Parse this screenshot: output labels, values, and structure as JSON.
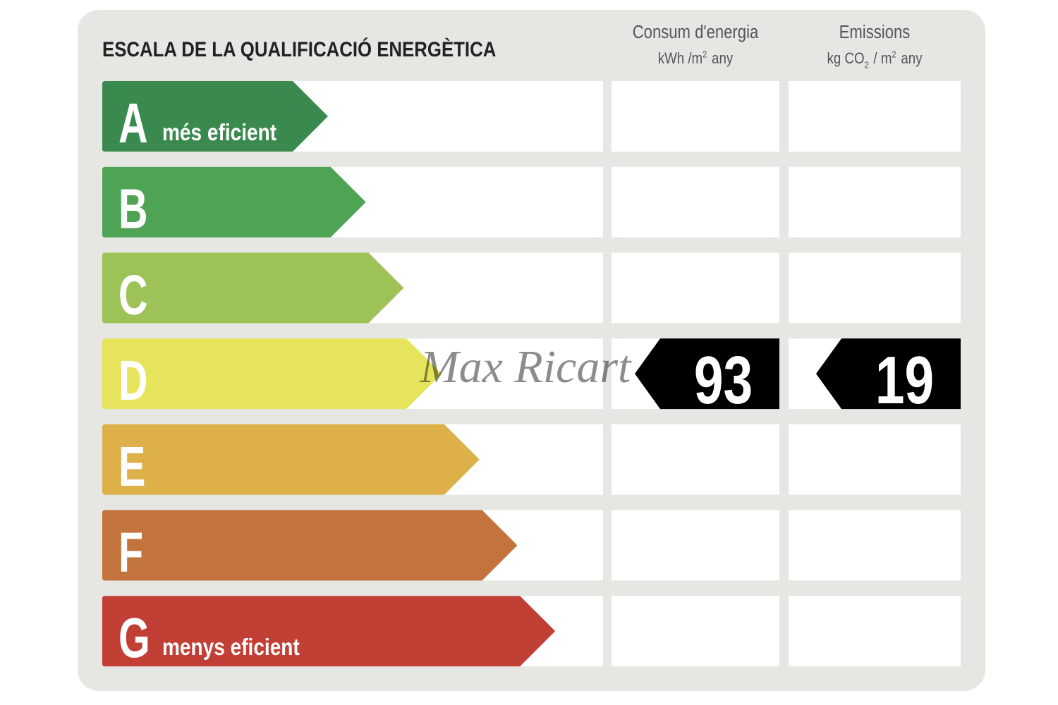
{
  "header": {
    "title": "ESCALA DE LA QUALIFICACIÓ ENERGÈTICA",
    "columns": [
      {
        "name": "Consum d'energia",
        "unit_parts": [
          {
            "text": "kWh /m"
          },
          {
            "text": "2",
            "style": "sup"
          },
          {
            "text": "any"
          }
        ]
      },
      {
        "name": "Emissions",
        "unit_parts": [
          {
            "text": "kg CO"
          },
          {
            "text": "2",
            "style": "sub"
          },
          {
            "text": "/ m"
          },
          {
            "text": "2",
            "style": "sup"
          },
          {
            "text": "any"
          }
        ]
      }
    ]
  },
  "scale": {
    "rows": [
      {
        "letter": "A",
        "label": "més eficient",
        "color": "#3a8a4f"
      },
      {
        "letter": "B",
        "color": "#4fa354"
      },
      {
        "letter": "C",
        "color": "#9cc258"
      },
      {
        "letter": "D",
        "color": "#e6e35c"
      },
      {
        "letter": "E",
        "color": "#ddb04a"
      },
      {
        "letter": "F",
        "color": "#c3733c"
      },
      {
        "letter": "G",
        "label": "menys eficient",
        "color": "#c23f36"
      }
    ]
  },
  "rating": {
    "letter": "D",
    "consumption": 93,
    "emissions": 19
  },
  "watermark": "Max Ricart"
}
